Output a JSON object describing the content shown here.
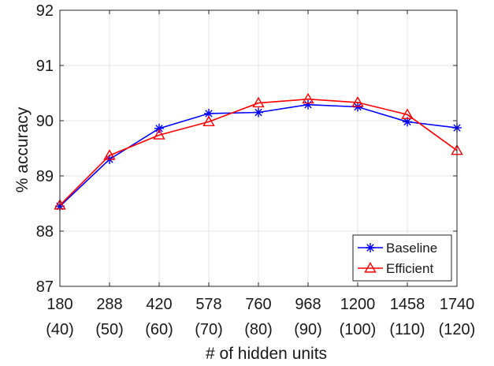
{
  "chart_data": {
    "type": "line",
    "categories": [
      "180",
      "288",
      "420",
      "578",
      "760",
      "968",
      "1200",
      "1458",
      "1740"
    ],
    "categories_secondary": [
      "(40)",
      "(50)",
      "(60)",
      "(70)",
      "(80)",
      "(90)",
      "(100)",
      "(110)",
      "(120)"
    ],
    "xlabel": "# of hidden units",
    "ylabel": "% accuracy",
    "ylim": [
      87,
      92
    ],
    "yticks": [
      87,
      88,
      89,
      90,
      91,
      92
    ],
    "grid": true,
    "legend_position": "bottom-right",
    "series": [
      {
        "name": "Baseline",
        "color": "#0000ff",
        "marker": "asterisk",
        "values": [
          88.45,
          89.3,
          89.86,
          90.13,
          90.15,
          90.29,
          90.25,
          89.98,
          89.87
        ]
      },
      {
        "name": "Efficient",
        "color": "#ff0000",
        "marker": "triangle",
        "values": [
          88.47,
          89.37,
          89.74,
          89.98,
          90.32,
          90.39,
          90.33,
          90.11,
          89.46
        ]
      }
    ]
  }
}
